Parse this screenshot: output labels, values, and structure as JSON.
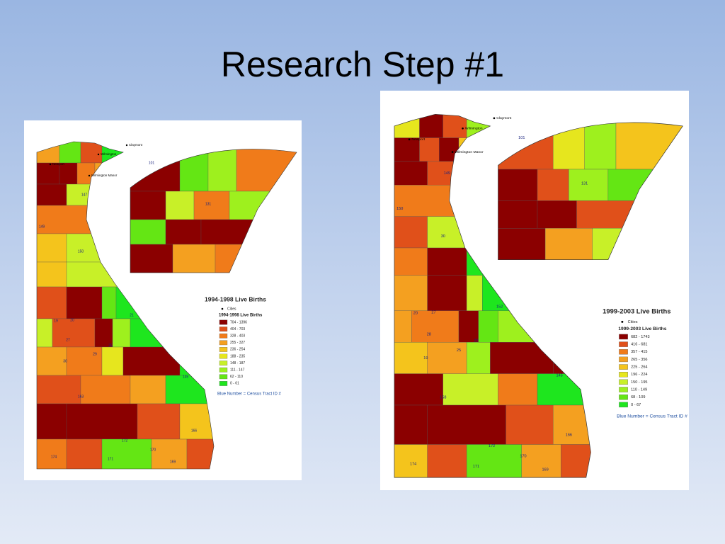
{
  "title": "Research Step #1",
  "maps": [
    {
      "legend_title": "1994-1998 Live Births",
      "cities_label": "Cities",
      "legend_subtitle": "1994-1998 Live Births",
      "classes": [
        {
          "label": "704 - 1396",
          "color": "#8b0000"
        },
        {
          "label": "404 - 703",
          "color": "#e0501a"
        },
        {
          "label": "328 - 403",
          "color": "#f07b1a"
        },
        {
          "label": "255 - 327",
          "color": "#f4a020"
        },
        {
          "label": "236 - 254",
          "color": "#f4c41c"
        },
        {
          "label": "188 - 235",
          "color": "#e6e61e"
        },
        {
          "label": "148 - 187",
          "color": "#c8f028"
        },
        {
          "label": "111 - 147",
          "color": "#9ef01e"
        },
        {
          "label": "62 - 110",
          "color": "#64e614"
        },
        {
          "label": "0 - 61",
          "color": "#1ee61e"
        }
      ],
      "note": "Blue Number = Census Tract ID #",
      "tract_labels": [
        "145",
        "147",
        "149",
        "150",
        "30",
        "19",
        "20",
        "27",
        "29",
        "25",
        "21",
        "163",
        "172",
        "174",
        "171",
        "170",
        "169",
        "166",
        "131",
        "101"
      ],
      "city_labels": [
        "Claymont",
        "Wilmington",
        "Newport",
        "Wilmington Manor"
      ]
    },
    {
      "legend_title": "1999-2003 Live Births",
      "cities_label": "Cities",
      "legend_subtitle": "1999-2003 Live Births",
      "classes": [
        {
          "label": "682 - 1743",
          "color": "#8b0000"
        },
        {
          "label": "416 - 681",
          "color": "#e0501a"
        },
        {
          "label": "357 - 415",
          "color": "#f07b1a"
        },
        {
          "label": "265 - 356",
          "color": "#f4a020"
        },
        {
          "label": "225 - 264",
          "color": "#f4c41c"
        },
        {
          "label": "196 - 224",
          "color": "#e6e61e"
        },
        {
          "label": "150 - 195",
          "color": "#c8f028"
        },
        {
          "label": "110 - 149",
          "color": "#9ef01e"
        },
        {
          "label": "68 - 109",
          "color": "#64e614"
        },
        {
          "label": "0 - 67",
          "color": "#1ee61e"
        }
      ],
      "note": "Blue Number = Census Tract ID #",
      "tract_labels": [
        "145",
        "149",
        "150",
        "30",
        "19",
        "20",
        "27",
        "28",
        "25",
        "22",
        "152",
        "158",
        "172",
        "174",
        "171",
        "170",
        "169",
        "166",
        "131",
        "101"
      ],
      "city_labels": [
        "Claymont",
        "Wilmington",
        "Newport",
        "Wilmington Manor"
      ]
    }
  ]
}
